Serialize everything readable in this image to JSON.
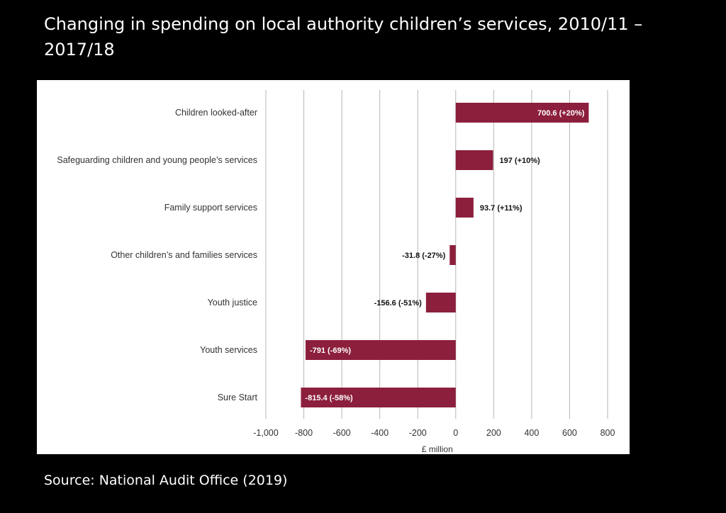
{
  "slide": {
    "title": "Changing in spending on local authority children’s services, 2010/11 – 2017/18",
    "source": "Source: National Audit Office (2019)"
  },
  "colors": {
    "background": "#000000",
    "panel": "#ffffff",
    "bar": "#8c1f3c",
    "gridline": "#b5b5b5",
    "text": "#333333",
    "label_on_bar": "#ffffff",
    "label_off_bar": "#111111"
  },
  "chart_data": {
    "type": "bar",
    "orientation": "horizontal",
    "title": "Changing in spending on local authority children’s services, 2010/11 – 2017/18",
    "xlabel": "£ million",
    "ylabel": "",
    "xlim": [
      -1000,
      800
    ],
    "xticks": [
      -1000,
      -800,
      -600,
      -400,
      -200,
      0,
      200,
      400,
      600,
      800
    ],
    "xtick_labels": [
      "-1,000",
      "-800",
      "-600",
      "-400",
      "-200",
      "0",
      "200",
      "400",
      "600",
      "800"
    ],
    "grid": true,
    "categories": [
      "Children looked-after",
      "Safeguarding children and young people’s services",
      "Family support services",
      "Other children’s and families services",
      "Youth justice",
      "Youth services",
      "Sure Start"
    ],
    "values": [
      700.6,
      197,
      93.7,
      -31.8,
      -156.6,
      -791,
      -815.4
    ],
    "data_labels": [
      "700.6 (+20%)",
      "197 (+10%)",
      "93.7 (+11%)",
      "-31.8 (-27%)",
      "-156.6 (-51%)",
      "-791 (-69%)",
      "-815.4 (-58%)"
    ],
    "label_inside": [
      true,
      false,
      false,
      false,
      false,
      true,
      true
    ]
  }
}
